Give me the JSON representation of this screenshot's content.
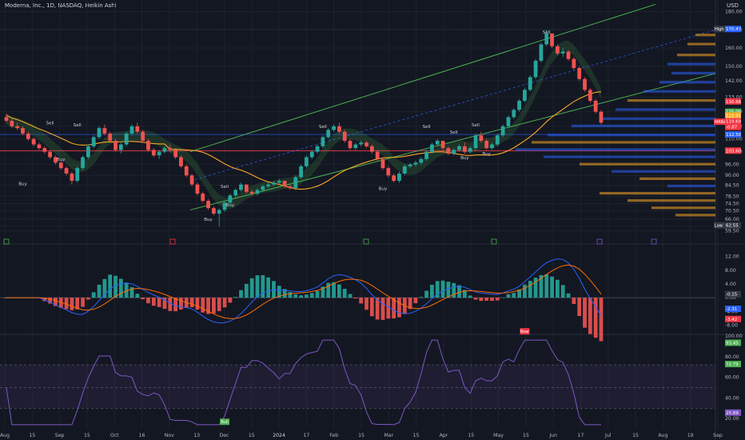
{
  "header": {
    "symbol_line": "Moderna, Inc., 1D, NASDAQ, Heikin Ashi",
    "currency": "USD"
  },
  "chart_data": {
    "type": "candlestick",
    "price_axis": {
      "ticks": [
        180.0,
        170.0,
        160.0,
        150.0,
        142.0,
        133.0,
        125.0,
        117.0,
        110.0,
        103.0,
        96.0,
        90.0,
        84.5,
        78.5,
        74.5,
        70.5,
        66.0,
        62.0,
        59.5
      ]
    },
    "price_labels": [
      {
        "text": "High",
        "price": 170.47,
        "color": "#363a45"
      },
      {
        "text": "170.47",
        "price": 170.47,
        "color": "#2962ff"
      },
      {
        "text": "130.66",
        "price": 130.66,
        "color": "#f23645"
      },
      {
        "text": "125.00",
        "price": 125.0,
        "color": "#4caf50"
      },
      {
        "text": "122.91",
        "price": 122.91,
        "color": "#f9a825"
      },
      {
        "text": "MRNA",
        "price": 119.5,
        "color": "#f23645"
      },
      {
        "text": "119.69",
        "price": 119.69,
        "color": "#f23645"
      },
      {
        "text": "-0.87",
        "price": 116.6,
        "color": "#f23645"
      },
      {
        "text": "112.50",
        "price": 112.5,
        "color": "#2962ff"
      },
      {
        "text": "103.60",
        "price": 103.6,
        "color": "#f23645"
      },
      {
        "text": "Low",
        "price": 62.55,
        "color": "#363a45"
      },
      {
        "text": "62.55",
        "price": 62.55,
        "color": "#363a45"
      }
    ],
    "markers": [
      {
        "text": "Buy",
        "date": "Aug 28",
        "price": 84.5,
        "kind": "buy"
      },
      {
        "text": "Sell",
        "date": "Sep 13",
        "price": 118,
        "kind": "sell"
      },
      {
        "text": "Buy",
        "date": "Sep 20",
        "price": 98,
        "kind": "buy"
      },
      {
        "text": "Sell",
        "date": "Sep 29",
        "price": 117,
        "kind": "sell"
      },
      {
        "text": "Buy",
        "date": "Nov 3",
        "price": 65,
        "kind": "buy"
      },
      {
        "text": "Sell",
        "date": "Nov 30",
        "price": 83,
        "kind": "sell"
      },
      {
        "text": "Buy",
        "date": "Dec 1",
        "price": 73,
        "kind": "buy"
      },
      {
        "text": "Sell",
        "date": "Jan 18",
        "price": 116,
        "kind": "sell"
      },
      {
        "text": "Buy",
        "date": "Feb 14",
        "price": 82,
        "kind": "buy"
      },
      {
        "text": "Sell",
        "date": "Mar 19",
        "price": 116,
        "kind": "sell"
      },
      {
        "text": "Sell",
        "date": "Apr 3",
        "price": 113,
        "kind": "sell"
      },
      {
        "text": "Buy",
        "date": "Apr 8",
        "price": 99,
        "kind": "buy"
      },
      {
        "text": "Sell",
        "date": "Apr 16",
        "price": 117,
        "kind": "sell"
      },
      {
        "text": "Buy",
        "date": "Apr 29",
        "price": 101,
        "kind": "buy"
      },
      {
        "text": "Sell",
        "date": "May 28",
        "price": 168,
        "kind": "sell"
      }
    ],
    "candles": [
      [
        122,
        124,
        119,
        120
      ],
      [
        120,
        121,
        116,
        117
      ],
      [
        117,
        119,
        115,
        116
      ],
      [
        116,
        117,
        112,
        113
      ],
      [
        113,
        114,
        109,
        110
      ],
      [
        110,
        111,
        106,
        107
      ],
      [
        107,
        108,
        104,
        105
      ],
      [
        105,
        106,
        102,
        103
      ],
      [
        103,
        104,
        99,
        100
      ],
      [
        100,
        101,
        96,
        97
      ],
      [
        97,
        98,
        93,
        94
      ],
      [
        94,
        95,
        90,
        91
      ],
      [
        91,
        92,
        85,
        87
      ],
      [
        87,
        95,
        86,
        94
      ],
      [
        94,
        101,
        93,
        100
      ],
      [
        100,
        107,
        99,
        106
      ],
      [
        106,
        112,
        105,
        111
      ],
      [
        111,
        117,
        110,
        116
      ],
      [
        116,
        118,
        112,
        113
      ],
      [
        113,
        114,
        108,
        109
      ],
      [
        109,
        110,
        103,
        104
      ],
      [
        104,
        108,
        102,
        107
      ],
      [
        107,
        114,
        106,
        113
      ],
      [
        113,
        118,
        112,
        117
      ],
      [
        117,
        119,
        113,
        114
      ],
      [
        114,
        115,
        108,
        109
      ],
      [
        109,
        110,
        103,
        104
      ],
      [
        104,
        105,
        100,
        101
      ],
      [
        101,
        104,
        99,
        103
      ],
      [
        103,
        106,
        102,
        105
      ],
      [
        105,
        107,
        103,
        104
      ],
      [
        104,
        105,
        99,
        100
      ],
      [
        100,
        101,
        94,
        95
      ],
      [
        95,
        96,
        89,
        90
      ],
      [
        90,
        91,
        84,
        85
      ],
      [
        85,
        86,
        79,
        80
      ],
      [
        80,
        81,
        75,
        76
      ],
      [
        76,
        77,
        71,
        72
      ],
      [
        72,
        73,
        68,
        69
      ],
      [
        69,
        72,
        62,
        71
      ],
      [
        71,
        76,
        70,
        75
      ],
      [
        75,
        80,
        74,
        79
      ],
      [
        79,
        83,
        78,
        82
      ],
      [
        82,
        86,
        81,
        85
      ],
      [
        85,
        84,
        80,
        81
      ],
      [
        81,
        82,
        79,
        80
      ],
      [
        80,
        83,
        79,
        82
      ],
      [
        82,
        85,
        81,
        84
      ],
      [
        84,
        86,
        83,
        85
      ],
      [
        85,
        87,
        84,
        86
      ],
      [
        86,
        88,
        85,
        87
      ],
      [
        87,
        86,
        83,
        84
      ],
      [
        84,
        85,
        82,
        83
      ],
      [
        83,
        90,
        82,
        89
      ],
      [
        89,
        96,
        88,
        95
      ],
      [
        95,
        101,
        94,
        100
      ],
      [
        100,
        104,
        99,
        103
      ],
      [
        103,
        107,
        102,
        106
      ],
      [
        106,
        112,
        105,
        111
      ],
      [
        111,
        116,
        110,
        115
      ],
      [
        115,
        118,
        114,
        117
      ],
      [
        117,
        119,
        113,
        114
      ],
      [
        114,
        115,
        108,
        109
      ],
      [
        109,
        110,
        104,
        105
      ],
      [
        105,
        108,
        104,
        107
      ],
      [
        107,
        109,
        106,
        108
      ],
      [
        108,
        109,
        105,
        106
      ],
      [
        106,
        107,
        102,
        103
      ],
      [
        103,
        104,
        98,
        99
      ],
      [
        99,
        100,
        93,
        94
      ],
      [
        94,
        95,
        89,
        90
      ],
      [
        90,
        91,
        86,
        87
      ],
      [
        87,
        92,
        86,
        91
      ],
      [
        91,
        96,
        90,
        95
      ],
      [
        95,
        97,
        94,
        96
      ],
      [
        96,
        98,
        95,
        97
      ],
      [
        97,
        100,
        96,
        99
      ],
      [
        99,
        104,
        98,
        103
      ],
      [
        103,
        108,
        102,
        107
      ],
      [
        107,
        110,
        106,
        109
      ],
      [
        109,
        108,
        104,
        105
      ],
      [
        105,
        106,
        101,
        102
      ],
      [
        102,
        105,
        101,
        104
      ],
      [
        104,
        107,
        103,
        106
      ],
      [
        106,
        108,
        102,
        103
      ],
      [
        103,
        106,
        102,
        105
      ],
      [
        105,
        113,
        104,
        112
      ],
      [
        112,
        114,
        108,
        109
      ],
      [
        109,
        110,
        104,
        105
      ],
      [
        105,
        108,
        104,
        107
      ],
      [
        107,
        113,
        106,
        112
      ],
      [
        112,
        118,
        111,
        117
      ],
      [
        117,
        123,
        116,
        122
      ],
      [
        122,
        127,
        121,
        126
      ],
      [
        126,
        132,
        125,
        131
      ],
      [
        131,
        138,
        130,
        137
      ],
      [
        137,
        145,
        136,
        144
      ],
      [
        144,
        154,
        143,
        153
      ],
      [
        153,
        163,
        152,
        162
      ],
      [
        162,
        170,
        161,
        168
      ],
      [
        168,
        167,
        160,
        161
      ],
      [
        161,
        162,
        156,
        157
      ],
      [
        157,
        160,
        155,
        158
      ],
      [
        158,
        159,
        153,
        154
      ],
      [
        154,
        155,
        148,
        149
      ],
      [
        149,
        150,
        142,
        143
      ],
      [
        143,
        144,
        136,
        137
      ],
      [
        137,
        138,
        130,
        131
      ],
      [
        131,
        132,
        124,
        125
      ],
      [
        125,
        126,
        118,
        119
      ]
    ],
    "volume_profile": [
      {
        "price": 167,
        "width": 25,
        "color": "#f9a825"
      },
      {
        "price": 162,
        "width": 35,
        "color": "#f9a825"
      },
      {
        "price": 156,
        "width": 48,
        "color": "#f9a825"
      },
      {
        "price": 151,
        "width": 60,
        "color": "#2962ff"
      },
      {
        "price": 146,
        "width": 55,
        "color": "#2962ff"
      },
      {
        "price": 141,
        "width": 70,
        "color": "#2962ff"
      },
      {
        "price": 136,
        "width": 90,
        "color": "#2962ff"
      },
      {
        "price": 131,
        "width": 110,
        "color": "#f9a825"
      },
      {
        "price": 126,
        "width": 125,
        "color": "#2962ff"
      },
      {
        "price": 121,
        "width": 145,
        "color": "#2962ff"
      },
      {
        "price": 117,
        "width": 180,
        "color": "#2962ff"
      },
      {
        "price": 112,
        "width": 210,
        "color": "#2962ff"
      },
      {
        "price": 108,
        "width": 230,
        "color": "#f9a825"
      },
      {
        "price": 104,
        "width": 250,
        "color": "#2962ff"
      },
      {
        "price": 100,
        "width": 215,
        "color": "#2962ff"
      },
      {
        "price": 96,
        "width": 170,
        "color": "#f9a825"
      },
      {
        "price": 92,
        "width": 130,
        "color": "#2962ff"
      },
      {
        "price": 88,
        "width": 95,
        "color": "#f9a825"
      },
      {
        "price": 84,
        "width": 60,
        "color": "#2962ff"
      },
      {
        "price": 80,
        "width": 145,
        "color": "#f9a825"
      },
      {
        "price": 76,
        "width": 110,
        "color": "#f9a825"
      },
      {
        "price": 72,
        "width": 80,
        "color": "#f9a825"
      },
      {
        "price": 68,
        "width": 50,
        "color": "#f9a825"
      }
    ],
    "macd_axis": {
      "ticks": [
        "12.00",
        "8.00",
        "4.00",
        "0.00",
        "-4.00",
        "-8.00"
      ],
      "labels": [
        {
          "text": "-0.15",
          "value": -0.15,
          "color": "#363a45"
        },
        {
          "text": "-2.31",
          "value": -2.31,
          "color": "#2962ff"
        },
        {
          "text": "-3.42",
          "value": -3.42,
          "color": "#f23645"
        }
      ]
    },
    "rsi_axis": {
      "ticks": [
        "100.00",
        "80.00",
        "60.00",
        "40.00",
        "20.00"
      ],
      "labels": [
        {
          "text": "93.45",
          "value": 93.45,
          "color": "#4caf50"
        },
        {
          "text": "72.79",
          "value": 72.79,
          "color": "#4caf50"
        },
        {
          "text": "25.69",
          "value": 25.69,
          "color": "#7e57c2"
        }
      ]
    },
    "rsi_signals": [
      {
        "text": "Bull",
        "index": 40,
        "color": "#4caf50"
      },
      {
        "text": "Bear",
        "index": 95,
        "color": "#f23645"
      }
    ],
    "x_axis": [
      "Aug",
      "15",
      "Sep",
      "15",
      "Oct",
      "16",
      "Nov",
      "13",
      "Dec",
      "15",
      "2024",
      "17",
      "Feb",
      "15",
      "Mar",
      "15",
      "Apr",
      "15",
      "May",
      "15",
      "Jun",
      "17",
      "Jul",
      "15",
      "Aug",
      "19",
      "Sep"
    ]
  }
}
